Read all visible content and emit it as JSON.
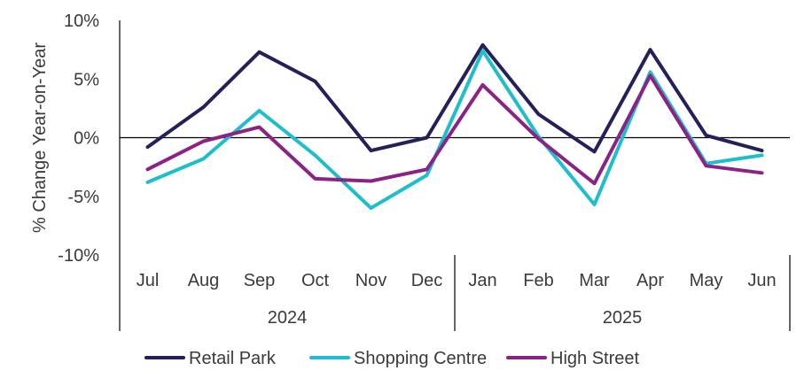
{
  "chart_data": {
    "type": "line",
    "title": "",
    "xlabel": "",
    "ylabel": "% Change Year-on-Year",
    "categories": [
      "Jul",
      "Aug",
      "Sep",
      "Oct",
      "Nov",
      "Dec",
      "Jan",
      "Feb",
      "Mar",
      "Apr",
      "May",
      "Jun"
    ],
    "year_groups": [
      {
        "label": "2024",
        "count": 6
      },
      {
        "label": "2025",
        "count": 6
      }
    ],
    "yticks": [
      {
        "value": 10,
        "label": "10%"
      },
      {
        "value": 5,
        "label": "5%"
      },
      {
        "value": 0,
        "label": "0%"
      },
      {
        "value": -5,
        "label": "-5%"
      },
      {
        "value": -10,
        "label": "-10%"
      }
    ],
    "ylim": [
      -10,
      10
    ],
    "grid": false,
    "legend_position": "bottom",
    "series": [
      {
        "name": "Retail Park",
        "color": "#24215a",
        "values": [
          -0.8,
          2.6,
          7.3,
          4.8,
          -1.1,
          0.0,
          7.9,
          2.0,
          -1.2,
          7.5,
          0.2,
          -1.1
        ]
      },
      {
        "name": "Shopping Centre",
        "color": "#1fbecb",
        "values": [
          -3.8,
          -1.8,
          2.3,
          -1.5,
          -6.0,
          -3.2,
          7.4,
          0.1,
          -5.7,
          5.6,
          -2.2,
          -1.5
        ]
      },
      {
        "name": "High Street",
        "color": "#8b2384",
        "values": [
          -2.7,
          -0.3,
          0.9,
          -3.5,
          -3.7,
          -2.7,
          4.5,
          -0.1,
          -3.9,
          5.3,
          -2.4,
          -3.0
        ]
      }
    ]
  }
}
